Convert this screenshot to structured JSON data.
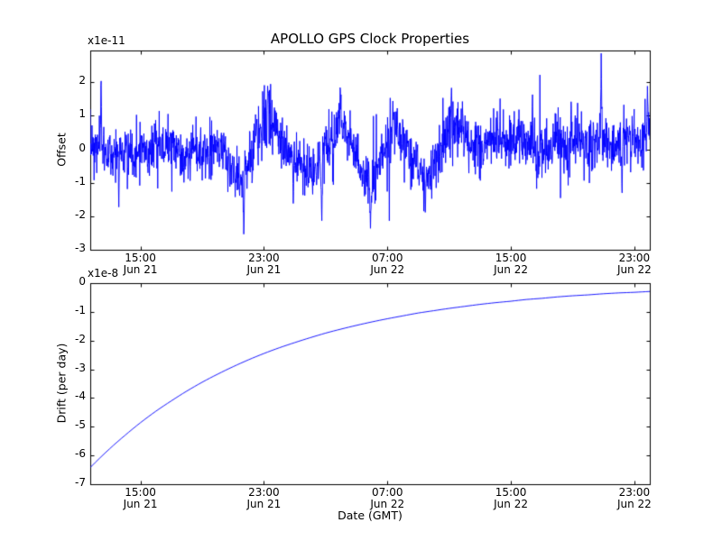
{
  "title": "APOLLO GPS Clock Properties",
  "colors": {
    "line": "#0000ff",
    "axis": "#000000",
    "background": "#ffffff"
  },
  "chart_data": [
    {
      "type": "line",
      "name": "offset",
      "ylabel": "Offset",
      "scale_label": "x1e-11",
      "legend": "none",
      "grid": false,
      "xlim": [
        11.75,
        48
      ],
      "ylim": [
        -3,
        2.95
      ],
      "yticks": [
        2,
        1,
        0,
        -1,
        -2,
        -3
      ],
      "ytick_labels": [
        "2",
        "1",
        "0",
        "-1",
        "-2",
        "-3"
      ],
      "xticks": [
        15,
        23,
        31,
        39,
        47
      ],
      "xtick_labels": [
        [
          "15:00",
          "Jun 21"
        ],
        [
          "23:00",
          "Jun 21"
        ],
        [
          "07:00",
          "Jun 22"
        ],
        [
          "15:00",
          "Jun 22"
        ],
        [
          "23:00",
          "Jun 22"
        ]
      ],
      "noise": {
        "seed": 7,
        "n": 1900,
        "std": 0.38,
        "heavy_tail_prob": 0.04,
        "heavy_tail_scale": 2.1
      },
      "baseline": [
        [
          11.75,
          0.15
        ],
        [
          12.5,
          0.0
        ],
        [
          13.2,
          -0.2
        ],
        [
          14.0,
          0.05
        ],
        [
          14.8,
          -0.15
        ],
        [
          15.5,
          0.1
        ],
        [
          16.3,
          -0.1
        ],
        [
          17.0,
          0.15
        ],
        [
          17.8,
          -0.2
        ],
        [
          18.5,
          0.0
        ],
        [
          19.3,
          -0.15
        ],
        [
          20.0,
          0.1
        ],
        [
          20.8,
          -0.35
        ],
        [
          21.4,
          -0.9
        ],
        [
          22.0,
          -0.35
        ],
        [
          22.6,
          0.4
        ],
        [
          23.2,
          0.95
        ],
        [
          23.8,
          0.6
        ],
        [
          24.5,
          0.1
        ],
        [
          25.2,
          -0.4
        ],
        [
          25.9,
          -0.85
        ],
        [
          26.6,
          -0.5
        ],
        [
          27.2,
          0.3
        ],
        [
          27.9,
          0.9
        ],
        [
          28.6,
          0.3
        ],
        [
          29.3,
          -0.6
        ],
        [
          29.9,
          -1.05
        ],
        [
          30.6,
          -0.4
        ],
        [
          31.3,
          0.55
        ],
        [
          32.0,
          0.25
        ],
        [
          32.8,
          -0.5
        ],
        [
          33.5,
          -0.95
        ],
        [
          34.2,
          -0.25
        ],
        [
          34.9,
          0.55
        ],
        [
          35.6,
          0.8
        ],
        [
          36.3,
          0.3
        ],
        [
          37.0,
          0.0
        ],
        [
          37.8,
          0.4
        ],
        [
          38.6,
          0.15
        ],
        [
          39.4,
          0.45
        ],
        [
          40.2,
          0.1
        ],
        [
          41.0,
          -0.1
        ],
        [
          41.8,
          0.25
        ],
        [
          42.6,
          0.0
        ],
        [
          43.4,
          0.3
        ],
        [
          44.2,
          0.05
        ],
        [
          45.0,
          0.35
        ],
        [
          45.8,
          0.1
        ],
        [
          46.5,
          0.4
        ],
        [
          47.2,
          0.1
        ],
        [
          47.7,
          0.35
        ],
        [
          48.0,
          0.6
        ]
      ],
      "spikes": [
        [
          12.45,
          2.3,
          0.05
        ],
        [
          13.6,
          -1.75,
          0.05
        ],
        [
          21.7,
          -2.62,
          0.07
        ],
        [
          23.25,
          2.08,
          0.05
        ],
        [
          24.9,
          -1.7,
          0.05
        ],
        [
          26.75,
          -2.28,
          0.06
        ],
        [
          27.95,
          1.95,
          0.05
        ],
        [
          29.9,
          -2.42,
          0.06
        ],
        [
          31.35,
          1.5,
          0.05
        ],
        [
          33.45,
          -1.95,
          0.06
        ],
        [
          35.15,
          1.9,
          0.05
        ],
        [
          38.3,
          1.6,
          0.04
        ],
        [
          40.4,
          1.75,
          0.05
        ],
        [
          42.9,
          1.55,
          0.04
        ],
        [
          44.85,
          2.88,
          0.06
        ],
        [
          46.2,
          -1.6,
          0.04
        ],
        [
          47.85,
          1.95,
          0.05
        ]
      ]
    },
    {
      "type": "line",
      "name": "drift",
      "ylabel": "Drift (per day)",
      "xlabel": "Date (GMT)",
      "scale_label": "x1e-8",
      "legend": "none",
      "grid": false,
      "xlim": [
        11.75,
        48
      ],
      "ylim": [
        -7,
        0
      ],
      "yticks": [
        0,
        -1,
        -2,
        -3,
        -4,
        -5,
        -6,
        -7
      ],
      "ytick_labels": [
        "0",
        "-1",
        "-2",
        "-3",
        "-4",
        "-5",
        "-6",
        "-7"
      ],
      "xticks": [
        15,
        23,
        31,
        39,
        47
      ],
      "xtick_labels": [
        [
          "15:00",
          "Jun 21"
        ],
        [
          "23:00",
          "Jun 21"
        ],
        [
          "07:00",
          "Jun 22"
        ],
        [
          "15:00",
          "Jun 22"
        ],
        [
          "23:00",
          "Jun 22"
        ]
      ],
      "points": [
        [
          11.75,
          -6.42
        ],
        [
          13,
          -5.77
        ],
        [
          14,
          -5.3
        ],
        [
          15,
          -4.86
        ],
        [
          16,
          -4.46
        ],
        [
          17,
          -4.1
        ],
        [
          18,
          -3.76
        ],
        [
          19,
          -3.45
        ],
        [
          20,
          -3.17
        ],
        [
          21,
          -2.91
        ],
        [
          22,
          -2.67
        ],
        [
          23,
          -2.45
        ],
        [
          24,
          -2.25
        ],
        [
          25,
          -2.07
        ],
        [
          26,
          -1.9
        ],
        [
          27,
          -1.74
        ],
        [
          28,
          -1.6
        ],
        [
          29,
          -1.47
        ],
        [
          30,
          -1.35
        ],
        [
          31,
          -1.24
        ],
        [
          32,
          -1.14
        ],
        [
          33,
          -1.04
        ],
        [
          34,
          -0.96
        ],
        [
          35,
          -0.88
        ],
        [
          36,
          -0.81
        ],
        [
          37,
          -0.74
        ],
        [
          38,
          -0.68
        ],
        [
          39,
          -0.63
        ],
        [
          40,
          -0.57
        ],
        [
          41,
          -0.53
        ],
        [
          42,
          -0.48
        ],
        [
          43,
          -0.44
        ],
        [
          44,
          -0.41
        ],
        [
          45,
          -0.37
        ],
        [
          46,
          -0.34
        ],
        [
          47,
          -0.32
        ],
        [
          48,
          -0.29
        ]
      ]
    }
  ]
}
